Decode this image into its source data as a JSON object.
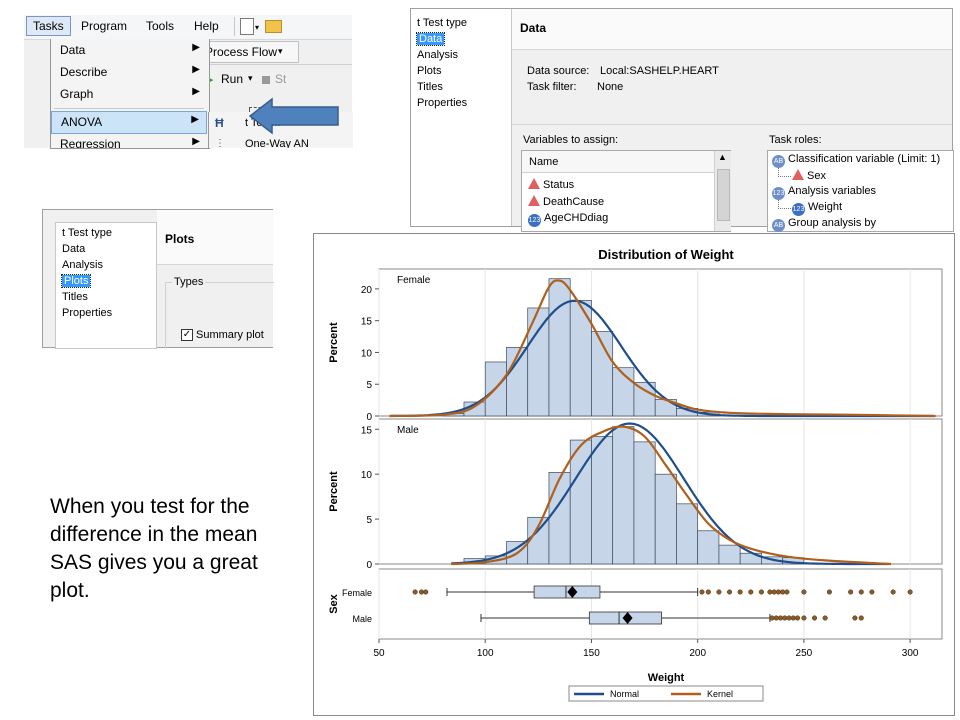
{
  "menu_screenshot": {
    "menubar": [
      "Tasks",
      "Program",
      "Tools",
      "Help"
    ],
    "dropdown_items": [
      {
        "label": "Data",
        "has_submenu": true
      },
      {
        "label": "Describe",
        "has_submenu": true
      },
      {
        "label": "Graph",
        "has_submenu": true
      },
      {
        "label": "ANOVA",
        "has_submenu": true,
        "selected": true
      },
      {
        "label": "Regression",
        "has_submenu": true
      }
    ],
    "toolbar": {
      "process_flow": "Process Flow",
      "run": "Run",
      "stop_partial": "St"
    },
    "submenu_items": [
      "t Test...",
      "One-Way AN"
    ],
    "arrow_color": "#4f81bd"
  },
  "data_screenshot": {
    "nav_items": [
      "t Test type",
      "Data",
      "Analysis",
      "Plots",
      "Titles",
      "Properties"
    ],
    "selected_nav": "Data",
    "header": "Data",
    "data_source_label": "Data source:",
    "data_source_value": "Local:SASHELP.HEART",
    "task_filter_label": "Task filter:",
    "task_filter_value": "None",
    "vars_label": "Variables to assign:",
    "vars_column": "Name",
    "variables": [
      {
        "name": "Status",
        "icon": "character-variable-icon"
      },
      {
        "name": "DeathCause",
        "icon": "character-variable-icon"
      },
      {
        "name": "AgeCHDdiag",
        "icon": "numeric-variable-icon"
      }
    ],
    "roles_label": "Task roles:",
    "roles": {
      "classification": "Classification variable  (Limit: 1)",
      "classification_value": "Sex",
      "analysis": "Analysis variables",
      "analysis_value": "Weight",
      "group": "Group analysis by"
    }
  },
  "plots_screenshot": {
    "nav_items": [
      "t Test type",
      "Data",
      "Analysis",
      "Plots",
      "Titles",
      "Properties"
    ],
    "selected_nav": "Plots",
    "header": "Plots",
    "group_label": "Types",
    "checkbox_label": "Summary plot",
    "checkbox_checked": true
  },
  "caption": "When you test for the difference in the mean SAS gives you a great plot.",
  "chart_data": {
    "type": "bar",
    "title": "Distribution of Weight",
    "xlabel": "Weight",
    "xlim": [
      50,
      315
    ],
    "x_ticks": [
      50,
      100,
      150,
      200,
      250,
      300
    ],
    "bin_width": 10,
    "colors": {
      "bar_fill": "#c6d6e8",
      "bar_stroke": "#3b4a5a",
      "normal": "#1f4e8c",
      "kernel": "#b0601d",
      "box_fill": "#c6d6e8"
    },
    "panels": [
      {
        "label": "Female",
        "ylabel": "Percent",
        "ylim": [
          0,
          22.5
        ],
        "y_ticks": [
          0,
          5,
          10,
          15,
          20
        ],
        "bins": [
          85,
          95,
          105,
          115,
          125,
          135,
          145,
          155,
          165,
          175,
          185,
          195,
          205
        ],
        "values": [
          0.4,
          2.2,
          8.5,
          10.8,
          17.0,
          21.6,
          18.2,
          13.3,
          7.6,
          5.3,
          2.6,
          1.2,
          0.6
        ],
        "normal": {
          "mean": 142,
          "sd": 22
        },
        "kernel": [
          [
            55,
            0
          ],
          [
            80,
            0.2
          ],
          [
            95,
            1.5
          ],
          [
            110,
            6.5
          ],
          [
            122,
            14.5
          ],
          [
            130,
            20.3
          ],
          [
            135,
            21.3
          ],
          [
            140,
            19.8
          ],
          [
            150,
            14.5
          ],
          [
            160,
            8.5
          ],
          [
            170,
            5.2
          ],
          [
            180,
            3.2
          ],
          [
            190,
            2.0
          ],
          [
            200,
            1.0
          ],
          [
            215,
            0.5
          ],
          [
            240,
            0.3
          ],
          [
            270,
            0.2
          ],
          [
            312,
            0
          ]
        ]
      },
      {
        "label": "Male",
        "ylabel": "Percent",
        "ylim": [
          0,
          15.7
        ],
        "y_ticks": [
          0,
          5,
          10,
          15
        ],
        "bins": [
          95,
          105,
          115,
          125,
          135,
          145,
          155,
          165,
          175,
          185,
          195,
          205,
          215,
          225,
          235,
          245
        ],
        "values": [
          0.6,
          0.9,
          2.5,
          5.2,
          10.2,
          13.8,
          14.2,
          15.3,
          13.6,
          10.0,
          6.7,
          3.7,
          2.1,
          1.2,
          0.8,
          0.7
        ],
        "normal": {
          "mean": 168,
          "sd": 25.5
        },
        "kernel": [
          [
            84,
            0
          ],
          [
            100,
            0.2
          ],
          [
            115,
            1.2
          ],
          [
            125,
            4.2
          ],
          [
            135,
            9.5
          ],
          [
            145,
            13.2
          ],
          [
            155,
            14.7
          ],
          [
            165,
            15.3
          ],
          [
            175,
            14.2
          ],
          [
            185,
            11.0
          ],
          [
            195,
            7.6
          ],
          [
            205,
            4.5
          ],
          [
            215,
            2.7
          ],
          [
            225,
            1.7
          ],
          [
            240,
            0.9
          ],
          [
            260,
            0.4
          ],
          [
            291,
            0
          ]
        ]
      }
    ],
    "box_panel": {
      "ylabel": "Sex",
      "groups": [
        {
          "label": "Female",
          "whisker_low": 82,
          "q1": 123,
          "median": 138,
          "q3": 154,
          "whisker_high": 200,
          "mean": 141,
          "outliers": [
            67,
            70,
            72,
            202,
            205,
            210,
            215,
            220,
            225,
            230,
            234,
            236,
            238,
            240,
            242,
            250,
            262,
            272,
            277,
            282,
            292,
            300
          ]
        },
        {
          "label": "Male",
          "whisker_low": 98,
          "q1": 149,
          "median": 163,
          "q3": 183,
          "whisker_high": 234,
          "mean": 167,
          "outliers": [
            235,
            237,
            239,
            241,
            243,
            245,
            247,
            250,
            255,
            260,
            274,
            277
          ]
        }
      ]
    },
    "legend": [
      {
        "name": "Normal",
        "color": "#1f4e8c"
      },
      {
        "name": "Kernel",
        "color": "#b0601d"
      }
    ],
    "legend_position": "bottom"
  }
}
